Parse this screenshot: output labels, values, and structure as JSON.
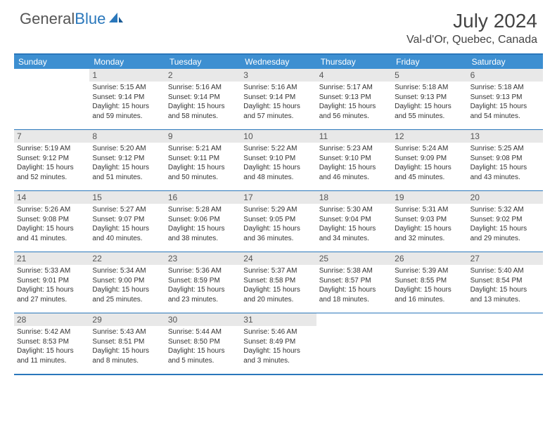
{
  "brand": {
    "part1": "General",
    "part2": "Blue"
  },
  "title": "July 2024",
  "location": "Val-d'Or, Quebec, Canada",
  "colors": {
    "header_bg": "#3d8fd1",
    "border": "#2a77bb",
    "daynum_bg": "#e8e8e8",
    "text": "#333333"
  },
  "dayNames": [
    "Sunday",
    "Monday",
    "Tuesday",
    "Wednesday",
    "Thursday",
    "Friday",
    "Saturday"
  ],
  "weeks": [
    [
      {
        "day": "",
        "sunrise": "",
        "sunset": "",
        "daylight": ""
      },
      {
        "day": "1",
        "sunrise": "Sunrise: 5:15 AM",
        "sunset": "Sunset: 9:14 PM",
        "daylight": "Daylight: 15 hours and 59 minutes."
      },
      {
        "day": "2",
        "sunrise": "Sunrise: 5:16 AM",
        "sunset": "Sunset: 9:14 PM",
        "daylight": "Daylight: 15 hours and 58 minutes."
      },
      {
        "day": "3",
        "sunrise": "Sunrise: 5:16 AM",
        "sunset": "Sunset: 9:14 PM",
        "daylight": "Daylight: 15 hours and 57 minutes."
      },
      {
        "day": "4",
        "sunrise": "Sunrise: 5:17 AM",
        "sunset": "Sunset: 9:13 PM",
        "daylight": "Daylight: 15 hours and 56 minutes."
      },
      {
        "day": "5",
        "sunrise": "Sunrise: 5:18 AM",
        "sunset": "Sunset: 9:13 PM",
        "daylight": "Daylight: 15 hours and 55 minutes."
      },
      {
        "day": "6",
        "sunrise": "Sunrise: 5:18 AM",
        "sunset": "Sunset: 9:13 PM",
        "daylight": "Daylight: 15 hours and 54 minutes."
      }
    ],
    [
      {
        "day": "7",
        "sunrise": "Sunrise: 5:19 AM",
        "sunset": "Sunset: 9:12 PM",
        "daylight": "Daylight: 15 hours and 52 minutes."
      },
      {
        "day": "8",
        "sunrise": "Sunrise: 5:20 AM",
        "sunset": "Sunset: 9:12 PM",
        "daylight": "Daylight: 15 hours and 51 minutes."
      },
      {
        "day": "9",
        "sunrise": "Sunrise: 5:21 AM",
        "sunset": "Sunset: 9:11 PM",
        "daylight": "Daylight: 15 hours and 50 minutes."
      },
      {
        "day": "10",
        "sunrise": "Sunrise: 5:22 AM",
        "sunset": "Sunset: 9:10 PM",
        "daylight": "Daylight: 15 hours and 48 minutes."
      },
      {
        "day": "11",
        "sunrise": "Sunrise: 5:23 AM",
        "sunset": "Sunset: 9:10 PM",
        "daylight": "Daylight: 15 hours and 46 minutes."
      },
      {
        "day": "12",
        "sunrise": "Sunrise: 5:24 AM",
        "sunset": "Sunset: 9:09 PM",
        "daylight": "Daylight: 15 hours and 45 minutes."
      },
      {
        "day": "13",
        "sunrise": "Sunrise: 5:25 AM",
        "sunset": "Sunset: 9:08 PM",
        "daylight": "Daylight: 15 hours and 43 minutes."
      }
    ],
    [
      {
        "day": "14",
        "sunrise": "Sunrise: 5:26 AM",
        "sunset": "Sunset: 9:08 PM",
        "daylight": "Daylight: 15 hours and 41 minutes."
      },
      {
        "day": "15",
        "sunrise": "Sunrise: 5:27 AM",
        "sunset": "Sunset: 9:07 PM",
        "daylight": "Daylight: 15 hours and 40 minutes."
      },
      {
        "day": "16",
        "sunrise": "Sunrise: 5:28 AM",
        "sunset": "Sunset: 9:06 PM",
        "daylight": "Daylight: 15 hours and 38 minutes."
      },
      {
        "day": "17",
        "sunrise": "Sunrise: 5:29 AM",
        "sunset": "Sunset: 9:05 PM",
        "daylight": "Daylight: 15 hours and 36 minutes."
      },
      {
        "day": "18",
        "sunrise": "Sunrise: 5:30 AM",
        "sunset": "Sunset: 9:04 PM",
        "daylight": "Daylight: 15 hours and 34 minutes."
      },
      {
        "day": "19",
        "sunrise": "Sunrise: 5:31 AM",
        "sunset": "Sunset: 9:03 PM",
        "daylight": "Daylight: 15 hours and 32 minutes."
      },
      {
        "day": "20",
        "sunrise": "Sunrise: 5:32 AM",
        "sunset": "Sunset: 9:02 PM",
        "daylight": "Daylight: 15 hours and 29 minutes."
      }
    ],
    [
      {
        "day": "21",
        "sunrise": "Sunrise: 5:33 AM",
        "sunset": "Sunset: 9:01 PM",
        "daylight": "Daylight: 15 hours and 27 minutes."
      },
      {
        "day": "22",
        "sunrise": "Sunrise: 5:34 AM",
        "sunset": "Sunset: 9:00 PM",
        "daylight": "Daylight: 15 hours and 25 minutes."
      },
      {
        "day": "23",
        "sunrise": "Sunrise: 5:36 AM",
        "sunset": "Sunset: 8:59 PM",
        "daylight": "Daylight: 15 hours and 23 minutes."
      },
      {
        "day": "24",
        "sunrise": "Sunrise: 5:37 AM",
        "sunset": "Sunset: 8:58 PM",
        "daylight": "Daylight: 15 hours and 20 minutes."
      },
      {
        "day": "25",
        "sunrise": "Sunrise: 5:38 AM",
        "sunset": "Sunset: 8:57 PM",
        "daylight": "Daylight: 15 hours and 18 minutes."
      },
      {
        "day": "26",
        "sunrise": "Sunrise: 5:39 AM",
        "sunset": "Sunset: 8:55 PM",
        "daylight": "Daylight: 15 hours and 16 minutes."
      },
      {
        "day": "27",
        "sunrise": "Sunrise: 5:40 AM",
        "sunset": "Sunset: 8:54 PM",
        "daylight": "Daylight: 15 hours and 13 minutes."
      }
    ],
    [
      {
        "day": "28",
        "sunrise": "Sunrise: 5:42 AM",
        "sunset": "Sunset: 8:53 PM",
        "daylight": "Daylight: 15 hours and 11 minutes."
      },
      {
        "day": "29",
        "sunrise": "Sunrise: 5:43 AM",
        "sunset": "Sunset: 8:51 PM",
        "daylight": "Daylight: 15 hours and 8 minutes."
      },
      {
        "day": "30",
        "sunrise": "Sunrise: 5:44 AM",
        "sunset": "Sunset: 8:50 PM",
        "daylight": "Daylight: 15 hours and 5 minutes."
      },
      {
        "day": "31",
        "sunrise": "Sunrise: 5:46 AM",
        "sunset": "Sunset: 8:49 PM",
        "daylight": "Daylight: 15 hours and 3 minutes."
      },
      {
        "day": "",
        "sunrise": "",
        "sunset": "",
        "daylight": ""
      },
      {
        "day": "",
        "sunrise": "",
        "sunset": "",
        "daylight": ""
      },
      {
        "day": "",
        "sunrise": "",
        "sunset": "",
        "daylight": ""
      }
    ]
  ]
}
